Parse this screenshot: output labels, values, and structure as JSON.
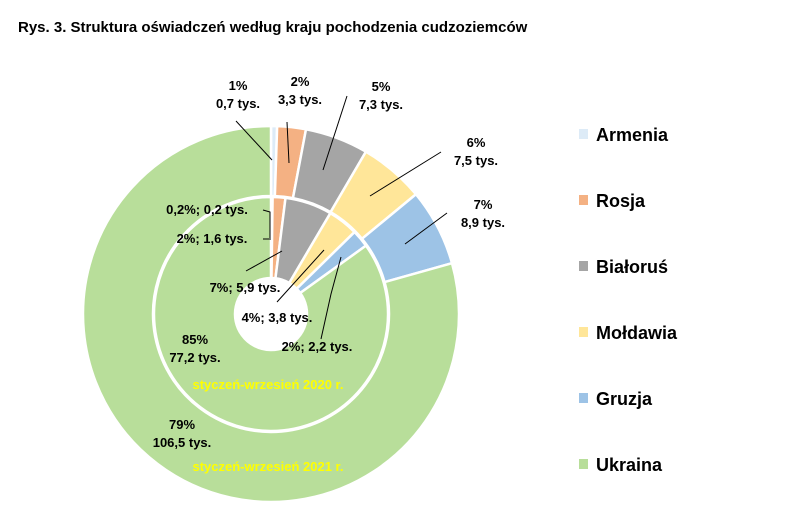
{
  "chart_data": {
    "type": "donut",
    "title": "Rys. 3. Struktura oświadczeń według kraju pochodzenia cudzoziemców",
    "categories": [
      "Armenia",
      "Rosja",
      "Białoruś",
      "Mołdawia",
      "Gruzja",
      "Ukraina"
    ],
    "colors": [
      "#ddebf7",
      "#f4b183",
      "#a5a5a5",
      "#ffe699",
      "#9dc3e6",
      "#b8de9a"
    ],
    "series": [
      {
        "name": "styczeń-wrzesień 2021 r.",
        "values": [
          0.7,
          3.3,
          7.3,
          7.5,
          8.9,
          106.5
        ],
        "labels": [
          [
            "1%",
            "0,7 tys."
          ],
          [
            "2%",
            "3,3 tys."
          ],
          [
            "5%",
            "7,3 tys."
          ],
          [
            "6%",
            "7,5 tys."
          ],
          [
            "7%",
            "8,9 tys."
          ],
          [
            "79%",
            "106,5 tys."
          ]
        ]
      },
      {
        "name": "styczeń-wrzesień 2020 r.",
        "values": [
          0.2,
          1.6,
          5.9,
          3.8,
          2.2,
          77.2
        ],
        "labels": [
          [
            "0,2%; 0,2 tys."
          ],
          [
            "2%; 1,6 tys."
          ],
          [
            "7%; 5,9 tys."
          ],
          [
            "4%; 3,8 tys."
          ],
          [
            "2%; 2,2 tys."
          ],
          [
            "85%",
            "77,2 tys."
          ]
        ]
      }
    ],
    "legend_position": "right"
  }
}
